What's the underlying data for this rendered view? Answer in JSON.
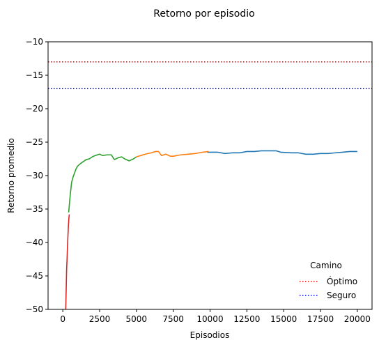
{
  "chart_data": {
    "type": "line",
    "title": "Retorno por episodio",
    "xlabel": "Episodios",
    "ylabel": "Retorno promedio",
    "xlim": [
      -1000,
      21000
    ],
    "ylim": [
      -50,
      -10
    ],
    "xticks": [
      0,
      2500,
      5000,
      7500,
      10000,
      12500,
      15000,
      17500,
      20000
    ],
    "xtick_labels": [
      "0",
      "2500",
      "5000",
      "7500",
      "10000",
      "12500",
      "15000",
      "17500",
      "20000"
    ],
    "yticks": [
      -50,
      -45,
      -40,
      -35,
      -30,
      -25,
      -20,
      -15,
      -10
    ],
    "ytick_labels": [
      "−50",
      "−45",
      "−40",
      "−35",
      "−30",
      "−25",
      "−20",
      "−15",
      "−10"
    ],
    "grid": false,
    "reference_lines": [
      {
        "name": "Óptimo",
        "y": -13,
        "color": "#ff0000",
        "style": "dotted"
      },
      {
        "name": "Seguro",
        "y": -17,
        "color": "#0000ff",
        "style": "dotted"
      }
    ],
    "legend": {
      "title": "Camino",
      "placement": "lower-right"
    },
    "series": [
      {
        "color": "#1f77b4",
        "x": [
          9800,
          10500,
          11000,
          11500,
          12000,
          12500,
          13000,
          13500,
          14000,
          14500,
          14800,
          15500,
          16000,
          16500,
          17000,
          17500,
          18000,
          18500,
          19000,
          19500,
          20000
        ],
        "y": [
          -26.5,
          -26.5,
          -26.7,
          -26.6,
          -26.6,
          -26.4,
          -26.4,
          -26.3,
          -26.3,
          -26.3,
          -26.5,
          -26.6,
          -26.6,
          -26.8,
          -26.8,
          -26.7,
          -26.7,
          -26.6,
          -26.5,
          -26.4,
          -26.4
        ]
      },
      {
        "color": "#ff7f0e",
        "x": [
          5000,
          5300,
          5600,
          6000,
          6300,
          6500,
          6700,
          7000,
          7300,
          7500,
          8000,
          8500,
          9000,
          9500,
          9900
        ],
        "y": [
          -27.2,
          -27.0,
          -26.8,
          -26.6,
          -26.4,
          -26.4,
          -27.0,
          -26.8,
          -27.1,
          -27.1,
          -26.9,
          -26.8,
          -26.7,
          -26.5,
          -26.4
        ]
      },
      {
        "color": "#2ca02c",
        "x": [
          400,
          500,
          600,
          700,
          800,
          900,
          1000,
          1200,
          1400,
          1600,
          1800,
          2000,
          2200,
          2500,
          2700,
          3000,
          3300,
          3500,
          3800,
          4000,
          4200,
          4500,
          4800,
          5000
        ],
        "y": [
          -35.5,
          -33.0,
          -31.0,
          -30.2,
          -29.6,
          -29.0,
          -28.6,
          -28.2,
          -27.9,
          -27.6,
          -27.5,
          -27.2,
          -27.0,
          -26.8,
          -27.0,
          -26.9,
          -26.9,
          -27.6,
          -27.3,
          -27.2,
          -27.5,
          -27.8,
          -27.5,
          -27.2
        ]
      },
      {
        "color": "#d62728",
        "x": [
          200,
          230,
          260,
          290,
          320,
          350,
          380,
          410,
          440
        ],
        "y": [
          -50.0,
          -47.0,
          -44.0,
          -42.5,
          -40.5,
          -39.0,
          -37.5,
          -36.5,
          -35.8
        ]
      }
    ]
  }
}
